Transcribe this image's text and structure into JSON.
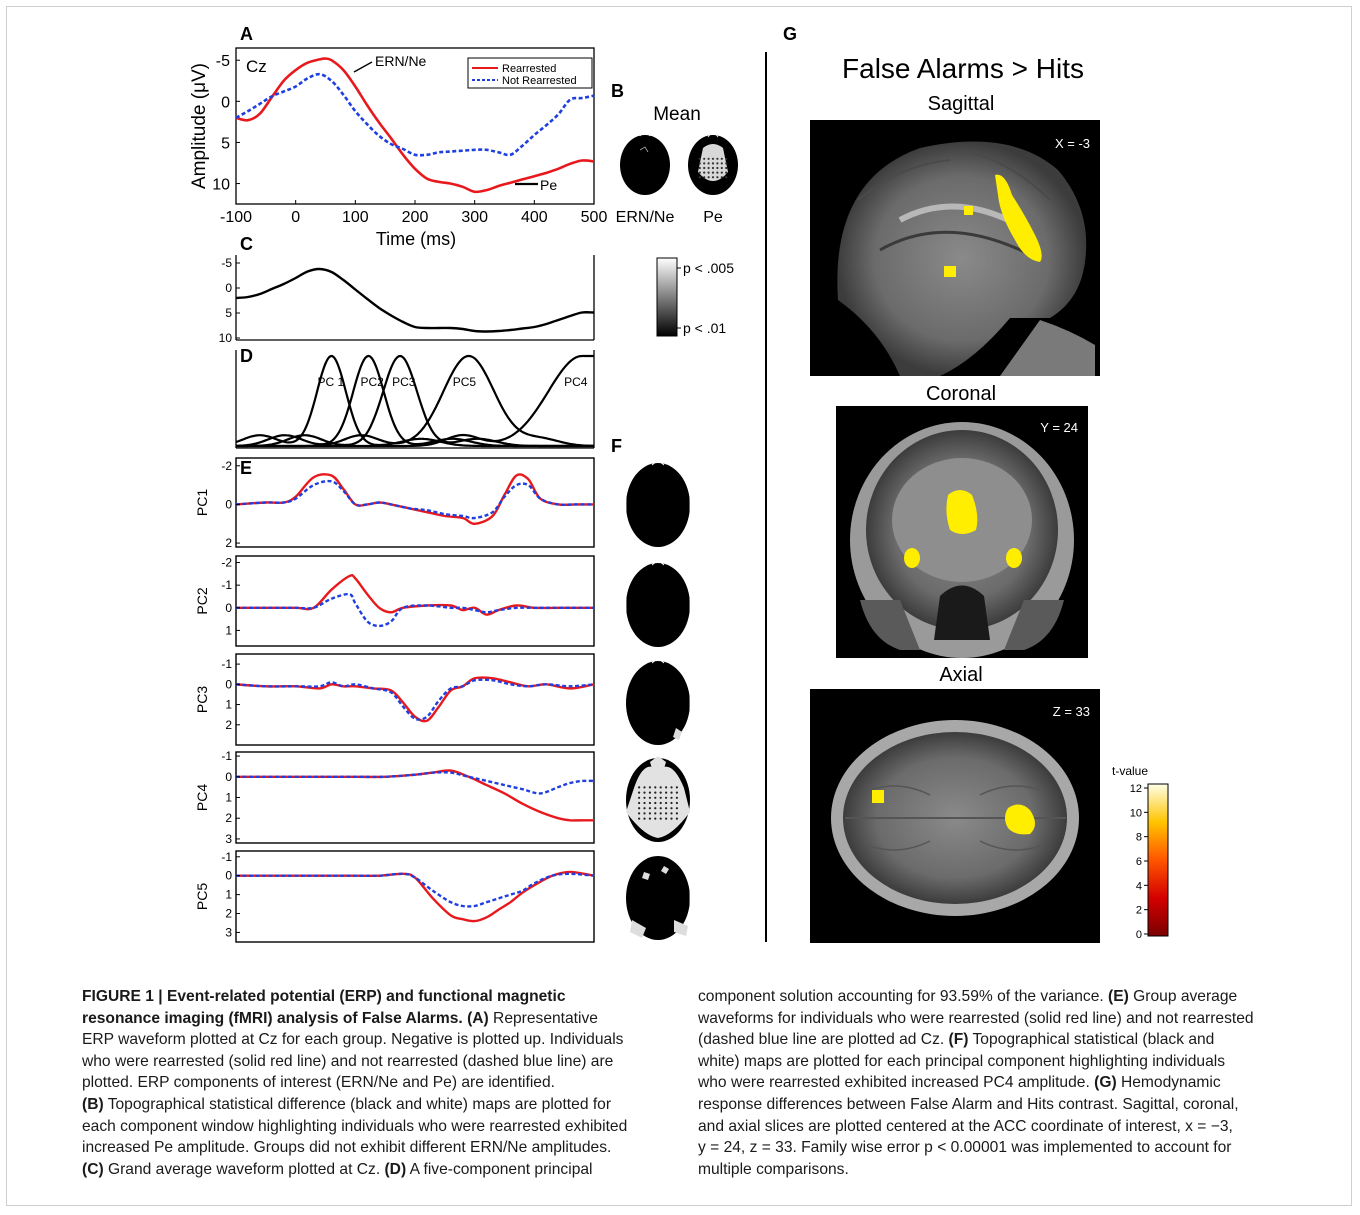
{
  "panels": {
    "A": {
      "letter": "A",
      "electrode": "Cz",
      "ylabel": "Amplitude (μV)",
      "xlabel": "Time (ms)",
      "yticks": [
        "-5",
        "0",
        "5",
        "10"
      ],
      "xticks": [
        "-100",
        "0",
        "100",
        "200",
        "300",
        "400",
        "500"
      ],
      "annotation_ern": "ERN/Ne",
      "annotation_pe": "Pe",
      "legend": [
        "Rearrested",
        "Not Rearrested"
      ]
    },
    "B": {
      "letter": "B",
      "title": "Mean",
      "labels": [
        "ERN/Ne",
        "Pe"
      ]
    },
    "C": {
      "letter": "C",
      "yticks": [
        "-5",
        "0",
        "5",
        "10"
      ]
    },
    "colorbar_p": {
      "top": "p < .005",
      "bottom": "p < .01"
    },
    "D": {
      "letter": "D",
      "labels": [
        "PC 1",
        "PC2",
        "PC3",
        "PC5",
        "PC4"
      ]
    },
    "E": {
      "letter": "E",
      "rows": [
        {
          "label": "PC1",
          "yticks": [
            "-2",
            "0",
            "2"
          ]
        },
        {
          "label": "PC2",
          "yticks": [
            "-2",
            "-1",
            "0",
            "1"
          ]
        },
        {
          "label": "PC3",
          "yticks": [
            "-1",
            "0",
            "1",
            "2"
          ]
        },
        {
          "label": "PC4",
          "yticks": [
            "-1",
            "0",
            "1",
            "2",
            "3"
          ]
        },
        {
          "label": "PC5",
          "yticks": [
            "-1",
            "0",
            "1",
            "2",
            "3"
          ]
        }
      ]
    },
    "F": {
      "letter": "F"
    },
    "G": {
      "letter": "G",
      "title": "False Alarms > Hits",
      "views": [
        {
          "label": "Sagittal",
          "coord": "X = -3"
        },
        {
          "label": "Coronal",
          "coord": "Y = 24"
        },
        {
          "label": "Axial",
          "coord": "Z = 33"
        }
      ],
      "colorbar_title": "t-value",
      "colorbar_ticks": [
        "12",
        "10",
        "8",
        "6",
        "4",
        "2",
        "0"
      ]
    }
  },
  "colors": {
    "rearrested": "#e8191d",
    "not_rearrested": "#1f3fe0",
    "activation": "#ffee00"
  },
  "chart_data": [
    {
      "type": "line",
      "panel": "A",
      "xlim": [
        -100,
        500
      ],
      "ylim": [
        -6,
        12
      ],
      "y_inverted": true,
      "series": [
        {
          "name": "Rearrested",
          "x": [
            -100,
            -80,
            -60,
            -40,
            -20,
            0,
            20,
            40,
            50,
            60,
            80,
            100,
            120,
            140,
            160,
            180,
            200,
            220,
            240,
            260,
            280,
            300,
            320,
            340,
            360,
            380,
            400,
            420,
            440,
            460,
            480,
            500
          ],
          "y": [
            2,
            2.3,
            1.5,
            -0.5,
            -2.5,
            -3.8,
            -4.7,
            -5.1,
            -5.2,
            -5,
            -3.8,
            -1.8,
            0.5,
            2.6,
            4.5,
            6.5,
            8.2,
            9.4,
            9.8,
            10,
            10.4,
            11,
            10.8,
            10.3,
            9.9,
            9.5,
            9.1,
            8.7,
            8.2,
            7.6,
            7.2,
            7.3
          ]
        },
        {
          "name": "Not Rearrested",
          "x": [
            -100,
            -80,
            -60,
            -40,
            -20,
            0,
            20,
            40,
            60,
            80,
            100,
            120,
            140,
            160,
            180,
            200,
            220,
            240,
            260,
            280,
            300,
            320,
            340,
            360,
            380,
            400,
            420,
            440,
            460,
            480,
            500
          ],
          "y": [
            2,
            1.2,
            0.3,
            -0.6,
            -1.2,
            -1.8,
            -2.8,
            -3.3,
            -2.5,
            -0.8,
            1.2,
            2.8,
            4.2,
            5.2,
            5.8,
            6.5,
            6.5,
            6.2,
            6.1,
            6,
            5.9,
            5.9,
            6.2,
            6.5,
            5.4,
            4.1,
            2.9,
            1.6,
            -0.2,
            -0.4,
            -0.7
          ]
        }
      ]
    },
    {
      "type": "line",
      "panel": "C",
      "xlim": [
        -100,
        500
      ],
      "ylim": [
        -6,
        10
      ],
      "y_inverted": true,
      "series": [
        {
          "x": [
            -100,
            -80,
            -60,
            -40,
            -20,
            0,
            20,
            40,
            60,
            80,
            100,
            120,
            140,
            160,
            180,
            200,
            220,
            240,
            260,
            280,
            300,
            320,
            340,
            360,
            380,
            400,
            420,
            440,
            460,
            480,
            500
          ],
          "y": [
            2,
            1.8,
            1.2,
            0.2,
            -0.8,
            -2,
            -3.3,
            -3.8,
            -3.2,
            -1.6,
            0.3,
            2.2,
            4,
            5.5,
            6.8,
            7.8,
            8,
            8,
            8,
            8.2,
            8.6,
            8.7,
            8.6,
            8.4,
            8.1,
            7.8,
            7.2,
            6.4,
            5.6,
            4.9,
            4.9
          ]
        }
      ]
    },
    {
      "type": "line",
      "panel": "D",
      "xlim": [
        -100,
        500
      ],
      "series": [
        {
          "name": "PC 1",
          "peak_x": 60
        },
        {
          "name": "PC2",
          "peak_x": 122
        },
        {
          "name": "PC3",
          "peak_x": 175
        },
        {
          "name": "PC5",
          "peak_x": 290
        },
        {
          "name": "PC4",
          "peak_x": 480
        }
      ]
    },
    {
      "type": "line",
      "panel": "E",
      "xlim": [
        -100,
        500
      ],
      "y_inverted": true,
      "rows": [
        {
          "name": "PC1",
          "ylim": [
            -2.3,
            2.1
          ],
          "series": [
            {
              "name": "Rearrested",
              "x": [
                -100,
                -50,
                -20,
                0,
                30,
                60,
                80,
                100,
                120,
                140,
                160,
                190,
                220,
                250,
                280,
                300,
                330,
                350,
                370,
                390,
                410,
                440,
                470,
                500
              ],
              "y": [
                0,
                -0.1,
                -0.1,
                -0.4,
                -1.4,
                -1.5,
                -0.8,
                0,
                0,
                -0.1,
                0,
                0.2,
                0.4,
                0.6,
                0.7,
                1.0,
                0.6,
                -0.5,
                -1.5,
                -1.3,
                -0.3,
                0,
                0,
                0
              ]
            },
            {
              "name": "Not Rearrested",
              "x": [
                -100,
                -50,
                -20,
                0,
                30,
                60,
                80,
                100,
                120,
                140,
                160,
                190,
                220,
                250,
                280,
                300,
                330,
                350,
                370,
                390,
                410,
                440,
                470,
                500
              ],
              "y": [
                0,
                -0.1,
                -0.1,
                -0.3,
                -1.0,
                -1.2,
                -0.7,
                0,
                0,
                -0.1,
                0,
                0.2,
                0.3,
                0.5,
                0.6,
                0.7,
                0.4,
                -0.4,
                -1.0,
                -1.0,
                -0.3,
                0,
                0,
                0
              ]
            }
          ]
        },
        {
          "name": "PC2",
          "ylim": [
            -2.2,
            1.6
          ],
          "series": [
            {
              "name": "Rearrested",
              "x": [
                -100,
                -50,
                0,
                30,
                60,
                90,
                100,
                120,
                140,
                160,
                180,
                220,
                260,
                280,
                300,
                320,
                340,
                370,
                400,
                440,
                500
              ],
              "y": [
                0,
                0,
                0,
                0,
                -0.8,
                -1.4,
                -1.3,
                -0.6,
                0,
                0.2,
                0,
                -0.1,
                -0.1,
                0.1,
                0,
                0.3,
                0.1,
                -0.1,
                0,
                0,
                0
              ]
            },
            {
              "name": "Not Rearrested",
              "x": [
                -100,
                -50,
                0,
                30,
                60,
                90,
                100,
                120,
                140,
                160,
                180,
                220,
                260,
                280,
                300,
                320,
                340,
                370,
                400,
                440,
                500
              ],
              "y": [
                0,
                0,
                0,
                0,
                -0.4,
                -0.6,
                -0.2,
                0.6,
                0.8,
                0.6,
                0,
                -0.1,
                0,
                0,
                0.1,
                0.2,
                0.1,
                0,
                0,
                0,
                0
              ]
            }
          ]
        },
        {
          "name": "PC3",
          "ylim": [
            -1.4,
            2.9
          ],
          "series": [
            {
              "name": "Rearrested",
              "x": [
                -100,
                -50,
                0,
                40,
                60,
                80,
                100,
                130,
                160,
                180,
                200,
                220,
                240,
                260,
                280,
                300,
                330,
                360,
                390,
                420,
                460,
                500
              ],
              "y": [
                0,
                0.1,
                0.1,
                0.2,
                0,
                0.1,
                0.1,
                0.2,
                0.3,
                0.9,
                1.6,
                1.8,
                1.1,
                0.3,
                0.1,
                -0.3,
                -0.3,
                -0.1,
                0.1,
                0,
                0.2,
                0
              ]
            },
            {
              "name": "Not Rearrested",
              "x": [
                -100,
                -50,
                0,
                40,
                60,
                80,
                100,
                130,
                160,
                180,
                200,
                220,
                240,
                260,
                280,
                300,
                330,
                360,
                390,
                420,
                460,
                500
              ],
              "y": [
                0,
                0.1,
                0.1,
                0.1,
                -0.1,
                0.1,
                0.0,
                0.2,
                0.4,
                1.1,
                1.7,
                1.6,
                0.8,
                0.2,
                0.1,
                -0.2,
                -0.2,
                0,
                0.1,
                0,
                0.1,
                0
              ]
            }
          ]
        },
        {
          "name": "PC4",
          "ylim": [
            -1.1,
            3.1
          ],
          "series": [
            {
              "name": "Rearrested",
              "x": [
                -100,
                -50,
                0,
                50,
                100,
                150,
                200,
                230,
                260,
                290,
                320,
                350,
                380,
                410,
                440,
                460,
                480,
                500
              ],
              "y": [
                0,
                0,
                0,
                0,
                0,
                0,
                -0.1,
                -0.2,
                -0.3,
                0,
                0.4,
                0.8,
                1.3,
                1.7,
                2.0,
                2.1,
                2.1,
                2.1
              ]
            },
            {
              "name": "Not Rearrested",
              "x": [
                -100,
                -50,
                0,
                50,
                100,
                150,
                200,
                230,
                260,
                290,
                320,
                350,
                380,
                410,
                440,
                460,
                480,
                500
              ],
              "y": [
                0,
                0,
                0,
                0,
                0,
                0,
                -0.1,
                -0.2,
                -0.2,
                0,
                0.2,
                0.4,
                0.6,
                0.8,
                0.5,
                0.3,
                0.2,
                0.2
              ]
            }
          ]
        },
        {
          "name": "PC5",
          "ylim": [
            -1.2,
            3.4
          ],
          "series": [
            {
              "name": "Rearrested",
              "x": [
                -100,
                -50,
                0,
                50,
                100,
                140,
                180,
                200,
                230,
                260,
                280,
                300,
                320,
                340,
                360,
                380,
                400,
                430,
                460,
                500
              ],
              "y": [
                0,
                0,
                0,
                0,
                0,
                0,
                -0.1,
                0.1,
                1.2,
                2.1,
                2.3,
                2.4,
                2.2,
                1.8,
                1.4,
                0.9,
                0.5,
                0,
                -0.2,
                0
              ]
            },
            {
              "name": "Not Rearrested",
              "x": [
                -100,
                -50,
                0,
                50,
                100,
                140,
                180,
                200,
                230,
                260,
                280,
                300,
                320,
                340,
                360,
                380,
                400,
                430,
                460,
                500
              ],
              "y": [
                0,
                0,
                0,
                0,
                0,
                0,
                -0.1,
                0.1,
                0.8,
                1.4,
                1.6,
                1.6,
                1.4,
                1.2,
                1.0,
                0.8,
                0.4,
                0,
                -0.1,
                0
              ]
            }
          ]
        }
      ]
    }
  ],
  "caption": {
    "figure_label": "FIGURE 1 | Event-related potential (ERP) and functional magnetic",
    "figure_label_2": "resonance imaging (fMRI) analysis of False Alarms.",
    "lines_left": [
      "ERP waveform plotted at Cz for each group. Negative is plotted up. Individuals",
      "who were rearrested (solid red line) and not rearrested (dashed blue line) are",
      "plotted. ERP components of interest (ERN/Ne and Pe) are identified.",
      "each component window highlighting individuals who were rearrested exhibited",
      "increased Pe amplitude. Groups did not exhibit different ERN/Ne amplitudes."
    ],
    "a_tag": "(A)",
    "a_text": " Representative",
    "b_tag": "(B)",
    "b_text": " Topographical statistical difference (black and white) maps are plotted for",
    "c_tag": "(C)",
    "c_text": " Grand average waveform plotted at Cz. ",
    "d_tag": "(D)",
    "d_text": " A five-component principal",
    "lines_right_1": "component solution accounting for 93.59% of the variance. ",
    "e_tag": "(E)",
    "e_text": " Group average",
    "lines_right_2": "waveforms for individuals who were rearrested (solid red line) and not rearrested",
    "lines_right_3": "(dashed blue line are plotted ad Cz. ",
    "f_tag": "(F)",
    "f_text": " Topographical statistical (black and",
    "lines_right_4": "white) maps are plotted for each principal component highlighting individuals",
    "lines_right_5": "who were rearrested exhibited increased PC4 amplitude. ",
    "g_tag": "(G)",
    "g_text": " Hemodynamic",
    "lines_right_6": "response differences between False Alarm and Hits contrast. Sagittal, coronal,",
    "lines_right_7": "and axial slices are plotted centered at the ACC coordinate of interest, x = −3,",
    "lines_right_8": "y = 24, z = 33. Family wise error p < 0.00001 was implemented to account for",
    "lines_right_9": "multiple comparisons."
  }
}
